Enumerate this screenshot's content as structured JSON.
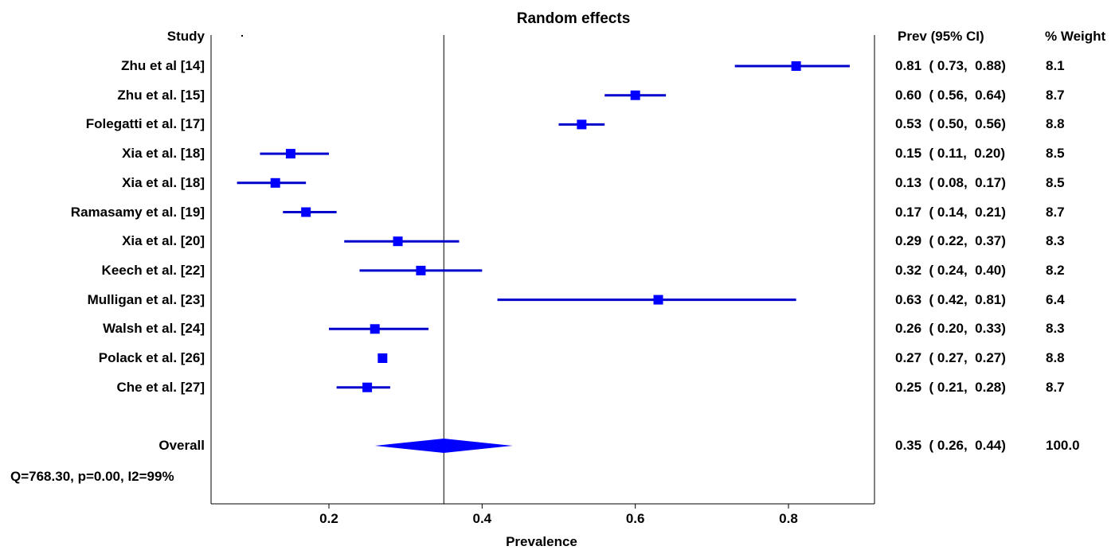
{
  "chart_data": {
    "type": "forest",
    "title": "Random effects",
    "xlabel": "Prevalence",
    "xlim": [
      0.05,
      0.92
    ],
    "xticks": [
      "0.2",
      "0.4",
      "0.6",
      "0.8"
    ],
    "reference_line": 0.35,
    "headers": {
      "study": "Study",
      "ci": "Prev (95% CI)",
      "weight": "% Weight"
    },
    "studies": [
      {
        "label": "Zhu et al [14]",
        "est": 0.81,
        "lo": 0.73,
        "hi": 0.88,
        "ci_text": "0.81  ( 0.73,  0.88)",
        "weight": "8.1"
      },
      {
        "label": "Zhu et al. [15]",
        "est": 0.6,
        "lo": 0.56,
        "hi": 0.64,
        "ci_text": "0.60  ( 0.56,  0.64)",
        "weight": "8.7"
      },
      {
        "label": "Folegatti et al. [17]",
        "est": 0.53,
        "lo": 0.5,
        "hi": 0.56,
        "ci_text": "0.53  ( 0.50,  0.56)",
        "weight": "8.8"
      },
      {
        "label": "Xia et al. [18]",
        "est": 0.15,
        "lo": 0.11,
        "hi": 0.2,
        "ci_text": "0.15  ( 0.11,  0.20)",
        "weight": "8.5"
      },
      {
        "label": "Xia et al. [18]",
        "est": 0.13,
        "lo": 0.08,
        "hi": 0.17,
        "ci_text": "0.13  ( 0.08,  0.17)",
        "weight": "8.5"
      },
      {
        "label": "Ramasamy et al. [19]",
        "est": 0.17,
        "lo": 0.14,
        "hi": 0.21,
        "ci_text": "0.17  ( 0.14,  0.21)",
        "weight": "8.7"
      },
      {
        "label": "Xia et al. [20]",
        "est": 0.29,
        "lo": 0.22,
        "hi": 0.37,
        "ci_text": "0.29  ( 0.22,  0.37)",
        "weight": "8.3"
      },
      {
        "label": "Keech et al. [22]",
        "est": 0.32,
        "lo": 0.24,
        "hi": 0.4,
        "ci_text": "0.32  ( 0.24,  0.40)",
        "weight": "8.2"
      },
      {
        "label": "Mulligan et al. [23]",
        "est": 0.63,
        "lo": 0.42,
        "hi": 0.81,
        "ci_text": "0.63  ( 0.42,  0.81)",
        "weight": "6.4"
      },
      {
        "label": "Walsh et al. [24]",
        "est": 0.26,
        "lo": 0.2,
        "hi": 0.33,
        "ci_text": "0.26  ( 0.20,  0.33)",
        "weight": "8.3"
      },
      {
        "label": "Polack et al. [26]",
        "est": 0.27,
        "lo": 0.27,
        "hi": 0.27,
        "ci_text": "0.27  ( 0.27,  0.27)",
        "weight": "8.8"
      },
      {
        "label": "Che et al. [27]",
        "est": 0.25,
        "lo": 0.21,
        "hi": 0.28,
        "ci_text": "0.25  ( 0.21,  0.28)",
        "weight": "8.7"
      }
    ],
    "overall": {
      "label": "Overall",
      "est": 0.35,
      "lo": 0.26,
      "hi": 0.44,
      "ci_text": "0.35  ( 0.26,  0.44)",
      "weight": "100.0"
    },
    "heterogeneity": "Q=768.30, p=0.00, I2=99%",
    "marker_color": "#0000ff",
    "line_color": "#0000cc"
  }
}
